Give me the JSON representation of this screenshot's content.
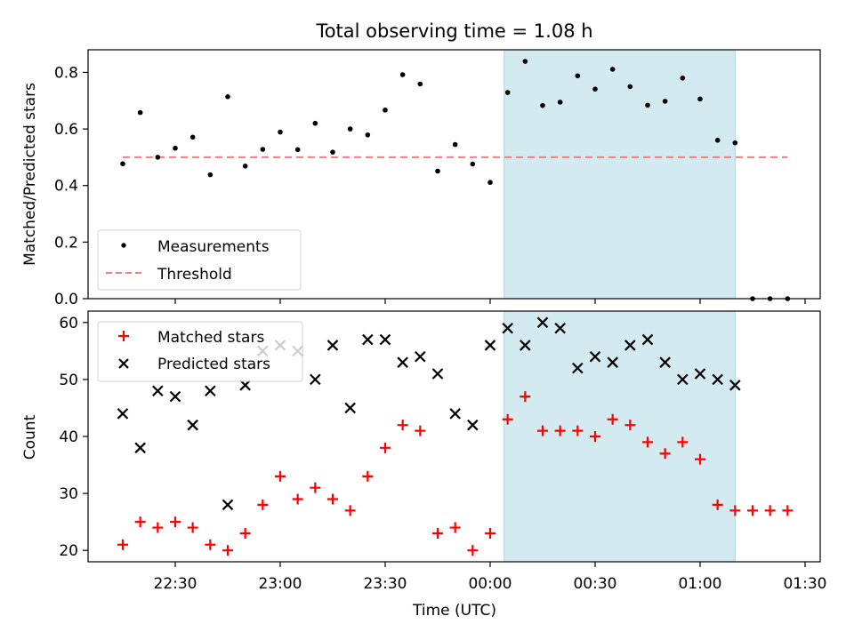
{
  "figure_title": "Total observing time = 1.08 h",
  "chart_data": [
    {
      "type": "scatter",
      "panel": "top",
      "title": "Total observing time = 1.08 h",
      "xlabel": "",
      "ylabel": "Matched/Predicted stars",
      "ylim": [
        0,
        0.88
      ],
      "yticks": [
        0.0,
        0.2,
        0.4,
        0.6,
        0.8
      ],
      "ytick_labels": [
        "0.0",
        "0.2",
        "0.4",
        "0.6",
        "0.8"
      ],
      "legend_position": "lower-left",
      "shaded_region": {
        "x_start": "00:04",
        "x_end": "01:10",
        "color": "#d3eaf0"
      },
      "series": [
        {
          "name": "Measurements",
          "marker": "dot",
          "color": "#000000",
          "x": [
            "22:15",
            "22:20",
            "22:25",
            "22:30",
            "22:35",
            "22:40",
            "22:45",
            "22:50",
            "22:55",
            "23:00",
            "23:05",
            "23:10",
            "23:15",
            "23:20",
            "23:25",
            "23:30",
            "23:35",
            "23:40",
            "23:45",
            "23:50",
            "23:55",
            "00:00",
            "00:05",
            "00:10",
            "00:15",
            "00:20",
            "00:25",
            "00:30",
            "00:35",
            "00:40",
            "00:45",
            "00:50",
            "00:55",
            "01:00",
            "01:05",
            "01:10",
            "01:15",
            "01:20",
            "01:25"
          ],
          "y": [
            0.477,
            0.658,
            0.5,
            0.532,
            0.571,
            0.438,
            0.714,
            0.469,
            0.528,
            0.589,
            0.527,
            0.62,
            0.518,
            0.6,
            0.579,
            0.667,
            0.792,
            0.759,
            0.451,
            0.545,
            0.476,
            0.411,
            0.729,
            0.839,
            0.683,
            0.695,
            0.788,
            0.741,
            0.811,
            0.75,
            0.684,
            0.698,
            0.78,
            0.706,
            0.56,
            0.551,
            0.0,
            0.0,
            0.0
          ]
        },
        {
          "name": "Threshold",
          "marker": "dashed-line",
          "color": "#f08080",
          "x": [
            "22:15",
            "01:25"
          ],
          "y": [
            0.5,
            0.5
          ]
        }
      ]
    },
    {
      "type": "scatter",
      "panel": "bottom",
      "xlabel": "Time (UTC)",
      "ylabel": "Count",
      "ylim": [
        18,
        62
      ],
      "yticks": [
        20,
        30,
        40,
        50,
        60
      ],
      "ytick_labels": [
        "20",
        "30",
        "40",
        "50",
        "60"
      ],
      "xticks": [
        "22:30",
        "23:00",
        "23:30",
        "00:00",
        "00:30",
        "01:00",
        "01:30"
      ],
      "legend_position": "upper-left",
      "shaded_region": {
        "x_start": "00:04",
        "x_end": "01:10",
        "color": "#d3eaf0"
      },
      "series": [
        {
          "name": "Matched stars",
          "marker": "plus",
          "color": "#ff0000",
          "x": [
            "22:15",
            "22:20",
            "22:25",
            "22:30",
            "22:35",
            "22:40",
            "22:45",
            "22:50",
            "22:55",
            "23:00",
            "23:05",
            "23:10",
            "23:15",
            "23:20",
            "23:25",
            "23:30",
            "23:35",
            "23:40",
            "23:45",
            "23:50",
            "23:55",
            "00:00",
            "00:05",
            "00:10",
            "00:15",
            "00:20",
            "00:25",
            "00:30",
            "00:35",
            "00:40",
            "00:45",
            "00:50",
            "00:55",
            "01:00",
            "01:05",
            "01:10",
            "01:15",
            "01:20",
            "01:25"
          ],
          "y": [
            21,
            25,
            24,
            25,
            24,
            21,
            20,
            23,
            28,
            33,
            29,
            31,
            29,
            27,
            33,
            38,
            42,
            41,
            23,
            24,
            20,
            23,
            43,
            47,
            41,
            41,
            41,
            40,
            43,
            42,
            39,
            37,
            39,
            36,
            28,
            27,
            27,
            27,
            27
          ]
        },
        {
          "name": "Predicted stars",
          "marker": "x",
          "color": "#000000",
          "x": [
            "22:15",
            "22:20",
            "22:25",
            "22:30",
            "22:35",
            "22:40",
            "22:45",
            "22:50",
            "22:55",
            "23:00",
            "23:05",
            "23:10",
            "23:15",
            "23:20",
            "23:25",
            "23:30",
            "23:35",
            "23:40",
            "23:45",
            "23:50",
            "23:55",
            "00:00",
            "00:05",
            "00:10",
            "00:15",
            "00:20",
            "00:25",
            "00:30",
            "00:35",
            "00:40",
            "00:45",
            "00:50",
            "00:55",
            "01:00",
            "01:05",
            "01:10"
          ],
          "y": [
            44,
            38,
            48,
            47,
            42,
            48,
            28,
            49,
            55,
            56,
            55,
            50,
            56,
            45,
            57,
            57,
            53,
            54,
            51,
            44,
            42,
            56,
            59,
            56,
            60,
            59,
            52,
            54,
            53,
            56,
            57,
            53,
            50,
            51,
            50,
            49
          ]
        }
      ]
    }
  ]
}
